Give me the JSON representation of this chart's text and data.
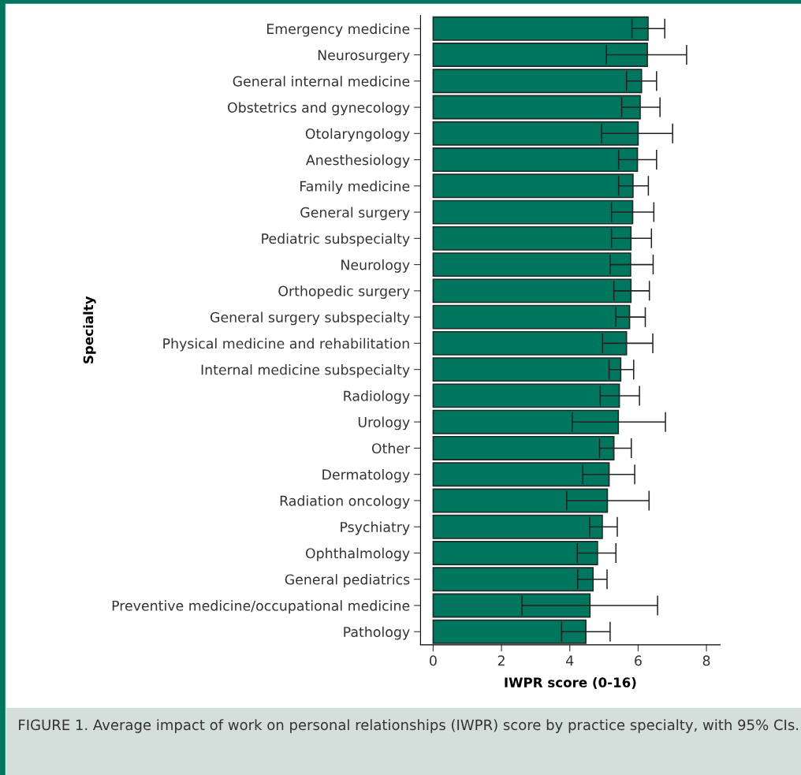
{
  "chart_data": {
    "type": "bar",
    "orientation": "horizontal",
    "xlabel": "IWPR score (0-16)",
    "ylabel": "Specialty",
    "categories": [
      "Emergency medicine",
      "Neurosurgery",
      "General internal medicine",
      "Obstetrics and gynecology",
      "Otolaryngology",
      "Anesthesiology",
      "Family medicine",
      "General surgery",
      "Pediatric subspecialty",
      "Neurology",
      "Orthopedic surgery",
      "General surgery subspecialty",
      "Physical medicine and rehabilitation",
      "Internal medicine subspecialty",
      "Radiology",
      "Urology",
      "Other",
      "Dermatology",
      "Radiation oncology",
      "Psychiatry",
      "Ophthalmology",
      "General pediatrics",
      "Preventive medicine/occupational medicine",
      "Pathology"
    ],
    "values": [
      6.29,
      6.27,
      6.1,
      6.06,
      6.0,
      5.98,
      5.85,
      5.84,
      5.79,
      5.78,
      5.79,
      5.75,
      5.66,
      5.49,
      5.45,
      5.42,
      5.29,
      5.15,
      5.1,
      4.95,
      4.81,
      4.68,
      4.59,
      4.47
    ],
    "errors": [
      [
        5.82,
        6.78
      ],
      [
        5.07,
        7.42
      ],
      [
        5.66,
        6.54
      ],
      [
        5.52,
        6.64
      ],
      [
        4.93,
        7.01
      ],
      [
        5.43,
        6.54
      ],
      [
        5.43,
        6.3
      ],
      [
        5.22,
        6.46
      ],
      [
        5.22,
        6.39
      ],
      [
        5.18,
        6.44
      ],
      [
        5.29,
        6.33
      ],
      [
        5.35,
        6.21
      ],
      [
        4.96,
        6.43
      ],
      [
        5.15,
        5.87
      ],
      [
        4.89,
        6.04
      ],
      [
        4.07,
        6.8
      ],
      [
        4.87,
        5.8
      ],
      [
        4.38,
        5.9
      ],
      [
        3.91,
        6.32
      ],
      [
        4.58,
        5.39
      ],
      [
        4.22,
        5.35
      ],
      [
        4.23,
        5.09
      ],
      [
        2.6,
        6.57
      ],
      [
        3.76,
        5.18
      ]
    ],
    "color": "#00765f",
    "xlim": [
      -0.37,
      8.4
    ],
    "xticks": [
      0,
      2,
      4,
      6,
      8
    ],
    "grid": false,
    "legend": false,
    "annotations": [
      "FIGURE 1. Average impact of work on personal relationships (IWPR) score by practice specialty, with 95% CIs."
    ]
  }
}
